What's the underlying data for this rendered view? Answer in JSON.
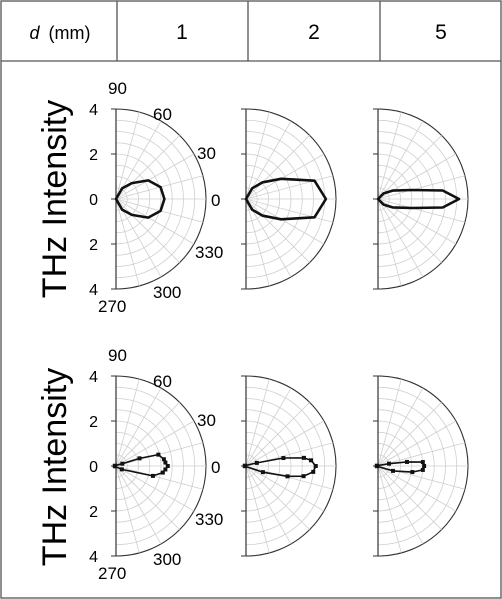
{
  "table": {
    "header_label": "d",
    "header_unit": "(mm)",
    "columns": [
      "1",
      "2",
      "5"
    ],
    "row_labels": [
      "THz Intensity",
      "THz Intensity"
    ]
  },
  "chart_data": {
    "type": "polar",
    "theta_unit": "degrees",
    "angle_labels": [
      "90",
      "60",
      "30",
      "0",
      "330",
      "300",
      "270"
    ],
    "radial_tick_labels": [
      "4",
      "2",
      "0",
      "2",
      "4"
    ],
    "rmax": 4,
    "radial_grid_step": 0.5,
    "angular_grid_step": 15,
    "panels": [
      {
        "row": 0,
        "column": "1",
        "style": "line",
        "points": [
          [
            270,
            0
          ],
          [
            300,
            0.55
          ],
          [
            315,
            1.0
          ],
          [
            330,
            1.65
          ],
          [
            345,
            2.05
          ],
          [
            0,
            2.15
          ],
          [
            15,
            2.05
          ],
          [
            30,
            1.65
          ],
          [
            45,
            1.0
          ],
          [
            60,
            0.55
          ],
          [
            90,
            0
          ]
        ]
      },
      {
        "row": 0,
        "column": "2",
        "style": "line",
        "points": [
          [
            270,
            0
          ],
          [
            300,
            0.55
          ],
          [
            315,
            1.05
          ],
          [
            330,
            1.8
          ],
          [
            345,
            3.15
          ],
          [
            0,
            3.55
          ],
          [
            15,
            3.15
          ],
          [
            30,
            1.8
          ],
          [
            45,
            1.05
          ],
          [
            60,
            0.55
          ],
          [
            90,
            0
          ]
        ]
      },
      {
        "row": 0,
        "column": "5",
        "style": "line",
        "points": [
          [
            270,
            0
          ],
          [
            315,
            0.35
          ],
          [
            330,
            0.75
          ],
          [
            345,
            1.55
          ],
          [
            352.5,
            2.9
          ],
          [
            0,
            3.6
          ],
          [
            7.5,
            2.9
          ],
          [
            15,
            1.55
          ],
          [
            30,
            0.75
          ],
          [
            45,
            0.35
          ],
          [
            90,
            0
          ]
        ]
      },
      {
        "row": 1,
        "column": "1",
        "style": "line-markers",
        "points": [
          [
            180,
            0.05
          ],
          [
            195,
            0.05
          ],
          [
            330,
            0.3
          ],
          [
            345,
            1.7
          ],
          [
            352,
            2.1
          ],
          [
            356,
            2.2
          ],
          [
            0,
            2.3
          ],
          [
            4,
            2.2
          ],
          [
            8,
            2.15
          ],
          [
            15,
            1.95
          ],
          [
            18,
            1.1
          ],
          [
            20,
            0.3
          ],
          [
            165,
            0.05
          ]
        ]
      },
      {
        "row": 1,
        "column": "2",
        "style": "line-markers",
        "points": [
          [
            175,
            0.05
          ],
          [
            190,
            0.05
          ],
          [
            340,
            0.8
          ],
          [
            346,
            1.9
          ],
          [
            350,
            2.6
          ],
          [
            355,
            3.0
          ],
          [
            0,
            3.1
          ],
          [
            5,
            2.9
          ],
          [
            8,
            2.6
          ],
          [
            12,
            1.7
          ],
          [
            16,
            0.5
          ],
          [
            165,
            0.05
          ]
        ]
      },
      {
        "row": 1,
        "column": "5",
        "style": "line-markers",
        "points": [
          [
            175,
            0.05
          ],
          [
            190,
            0.05
          ],
          [
            342,
            0.7
          ],
          [
            350,
            1.55
          ],
          [
            355,
            2.0
          ],
          [
            0,
            2.05
          ],
          [
            5,
            2.0
          ],
          [
            8,
            1.3
          ],
          [
            12,
            0.5
          ],
          [
            165,
            0.05
          ]
        ]
      }
    ]
  }
}
